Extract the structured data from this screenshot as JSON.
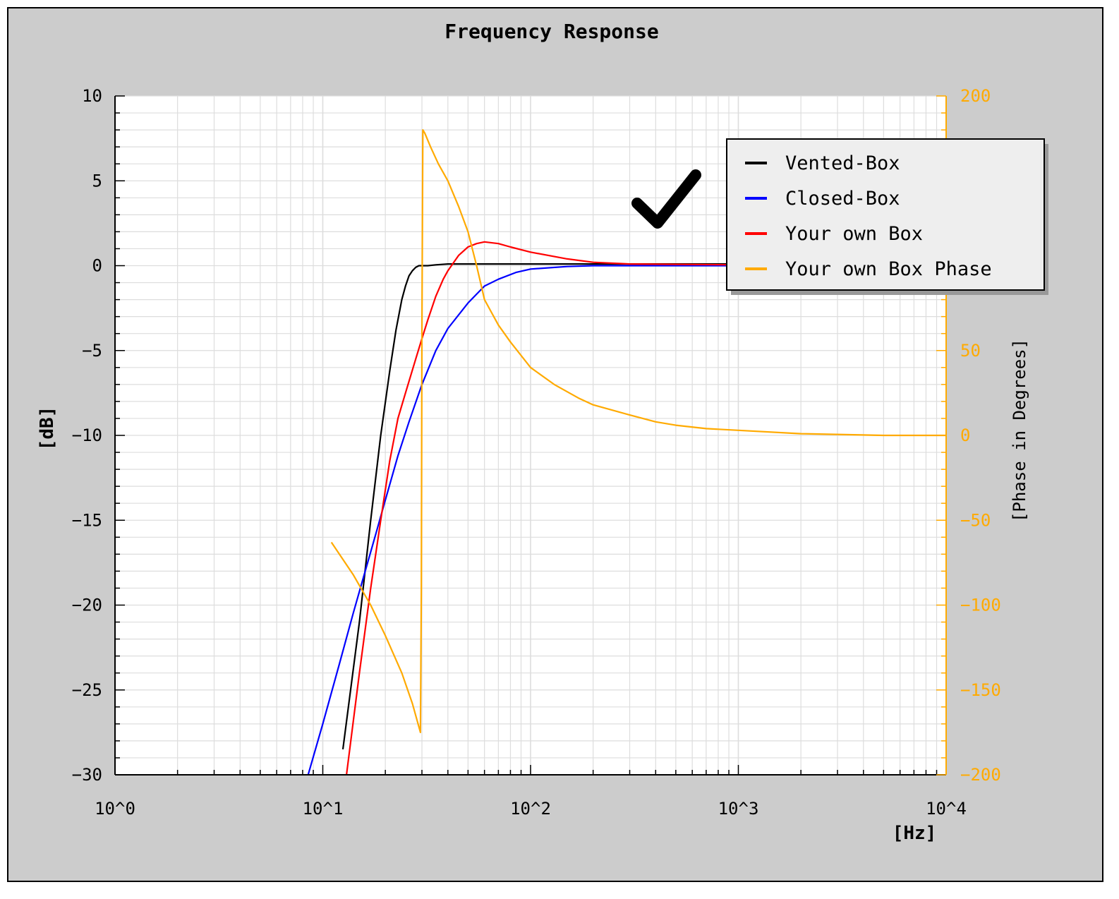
{
  "chart_data": {
    "type": "line",
    "title": "Frequency Response",
    "xlabel": "[Hz]",
    "ylabel": "[dB]",
    "ylabel_right": "[Phase in Degrees]",
    "x_scale": "log",
    "xlim": [
      1,
      10000
    ],
    "ylim": [
      -30,
      10
    ],
    "ylim_right": [
      -200,
      200
    ],
    "x_tick_labels": [
      "10^0",
      "10^1",
      "10^2",
      "10^3",
      "10^4"
    ],
    "y_tick_labels": [
      "10",
      "5",
      "0",
      "-5",
      "-10",
      "-15",
      "-20",
      "-25",
      "-30"
    ],
    "y_right_tick_labels": [
      "200",
      "50",
      "0",
      "-50",
      "-100",
      "-150",
      "-200"
    ],
    "grid": true,
    "legend_position": "top-right",
    "annotation": "checkmark",
    "colors": {
      "axis_right": "#ffaa00",
      "background": "#cccccc",
      "plot_area": "#ffffff"
    },
    "series": [
      {
        "name": "Vented-Box",
        "color": "#000000",
        "axis": "left",
        "x": [
          12.5,
          15,
          17,
          19,
          21,
          22.5,
          24,
          25,
          26,
          27,
          28,
          29,
          30,
          32,
          35,
          40,
          60,
          100,
          300,
          1000
        ],
        "y": [
          -28.5,
          -21,
          -15,
          -10,
          -6.2,
          -3.8,
          -2,
          -1.2,
          -0.6,
          -0.3,
          -0.1,
          0,
          0,
          0,
          0.05,
          0.1,
          0.1,
          0.1,
          0.1,
          0.1
        ]
      },
      {
        "name": "Closed-Box",
        "color": "#0000ff",
        "axis": "left",
        "x": [
          8.5,
          10,
          12,
          14,
          16,
          18,
          20,
          23,
          26,
          30,
          35,
          40,
          50,
          60,
          70,
          85,
          100,
          150,
          200,
          300,
          500,
          1000
        ],
        "y": [
          -30,
          -27,
          -23.5,
          -20.5,
          -18,
          -15.8,
          -13.8,
          -11.2,
          -9.2,
          -7,
          -5,
          -3.7,
          -2.2,
          -1.2,
          -0.8,
          -0.4,
          -0.2,
          -0.05,
          0,
          0,
          0,
          0
        ]
      },
      {
        "name": "Your own Box",
        "color": "#ff0000",
        "axis": "left",
        "x": [
          13,
          15,
          17,
          19,
          21,
          23,
          25,
          28,
          30,
          32,
          35,
          38,
          40,
          45,
          50,
          55,
          60,
          70,
          80,
          100,
          150,
          200,
          300,
          1000
        ],
        "y": [
          -30,
          -24,
          -19,
          -15,
          -11.5,
          -9,
          -7.5,
          -5.5,
          -4.3,
          -3.2,
          -1.8,
          -0.8,
          -0.3,
          0.6,
          1.1,
          1.3,
          1.4,
          1.3,
          1.1,
          0.8,
          0.4,
          0.2,
          0.1,
          0.05
        ]
      },
      {
        "name": "Your own Box Phase",
        "color": "#ffaa00",
        "axis": "right",
        "x": [
          11,
          14,
          17,
          20,
          24,
          27,
          29.5,
          29.8,
          30,
          30.3,
          31,
          33,
          36,
          40,
          45,
          50,
          55,
          60,
          70,
          80,
          100,
          130,
          170,
          200,
          300,
          400,
          500,
          700,
          1000,
          2000,
          5000,
          10000
        ],
        "y": [
          -63,
          -82,
          -100,
          -118,
          -140,
          -158,
          -175,
          -90,
          60,
          180,
          178,
          170,
          160,
          150,
          135,
          120,
          100,
          80,
          65,
          55,
          40,
          30,
          22,
          18,
          12,
          8,
          6,
          4,
          3,
          1,
          0,
          0
        ]
      }
    ]
  }
}
